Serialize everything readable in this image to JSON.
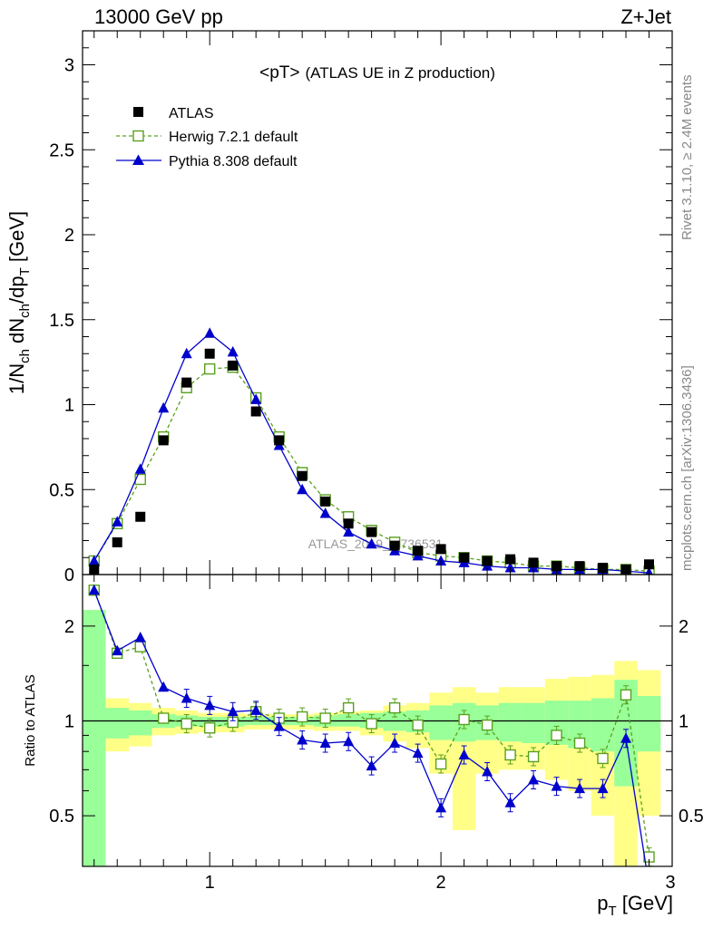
{
  "header": {
    "left": "13000 GeV pp",
    "right": "Z+Jet"
  },
  "side_labels": {
    "top": "Rivet 3.1.10, ≥ 2.4M events",
    "bottom": "mcplots.cern.ch [arXiv:1306.3436]"
  },
  "chart_data": [
    {
      "panel": "main",
      "type": "line",
      "title_main": "<pT>",
      "title_sub": "(ATLAS UE in Z production)",
      "watermark": "ATLAS_2019_I1736531",
      "xlabel": "",
      "ylabel_main": "1/N",
      "ylabel_sub1": "ch",
      "ylabel_mid": " dN",
      "ylabel_sub2": "ch",
      "ylabel_mid2": "/dp",
      "ylabel_sub3": "T",
      "ylabel_unit": " [GeV]",
      "xlim": [
        0.45,
        3.0
      ],
      "ylim": [
        0,
        3.2
      ],
      "yticks": [
        0,
        0.5,
        1,
        1.5,
        2,
        2.5,
        3
      ],
      "ytick_labels": [
        "0",
        "0.5",
        "1",
        "1.5",
        "2",
        "2.5",
        "3"
      ],
      "x": [
        0.5,
        0.6,
        0.7,
        0.8,
        0.9,
        1.0,
        1.1,
        1.2,
        1.3,
        1.4,
        1.5,
        1.6,
        1.7,
        1.8,
        1.9,
        2.0,
        2.1,
        2.2,
        2.3,
        2.4,
        2.5,
        2.6,
        2.7,
        2.8,
        2.9
      ],
      "legend_position": "top-left",
      "series": [
        {
          "name": "ATLAS",
          "color": "#000000",
          "marker": "filled-square",
          "line": "none",
          "values": [
            0.03,
            0.19,
            0.34,
            0.79,
            1.13,
            1.3,
            1.23,
            0.96,
            0.79,
            0.58,
            0.43,
            0.3,
            0.25,
            0.17,
            0.14,
            0.15,
            0.1,
            0.08,
            0.09,
            0.07,
            0.05,
            0.05,
            0.04,
            0.03,
            0.06
          ]
        },
        {
          "name": "Herwig 7.2.1 default",
          "color": "#5aa01e",
          "marker": "open-square",
          "line": "dashed",
          "values": [
            0.08,
            0.3,
            0.56,
            0.81,
            1.1,
            1.21,
            1.22,
            1.04,
            0.81,
            0.6,
            0.44,
            0.34,
            0.26,
            0.19,
            0.13,
            0.11,
            0.1,
            0.08,
            0.07,
            0.05,
            0.05,
            0.04,
            0.03,
            0.03,
            0.02
          ]
        },
        {
          "name": "Pythia 8.308 default",
          "color": "#0000cc",
          "marker": "filled-triangle",
          "line": "solid",
          "values": [
            0.08,
            0.31,
            0.62,
            0.98,
            1.3,
            1.42,
            1.31,
            1.03,
            0.76,
            0.5,
            0.36,
            0.25,
            0.18,
            0.14,
            0.11,
            0.08,
            0.07,
            0.05,
            0.04,
            0.04,
            0.03,
            0.03,
            0.03,
            0.02,
            0.01
          ]
        }
      ]
    },
    {
      "panel": "ratio",
      "type": "line",
      "ylabel": "Ratio to ATLAS",
      "xlabel_main": "p",
      "xlabel_sub": "T",
      "xlabel_unit": " [GeV]",
      "xlim": [
        0.45,
        3.0
      ],
      "ylim": [
        0.33,
        2.25
      ],
      "xticks": [
        1,
        2,
        3
      ],
      "xtick_labels": [
        "1",
        "2",
        "3"
      ],
      "yticks": [
        0.5,
        1,
        2
      ],
      "ytick_labels": [
        "0.5",
        "1",
        "2"
      ],
      "reference_line": 1,
      "band_yellow": {
        "color": "#ffff88",
        "lo": [
          0.33,
          0.8,
          0.83,
          0.9,
          0.91,
          0.92,
          0.92,
          0.94,
          0.94,
          0.94,
          0.93,
          0.93,
          0.9,
          0.86,
          0.82,
          0.68,
          0.45,
          0.68,
          0.7,
          0.7,
          0.65,
          0.6,
          0.5,
          0.33,
          0.5
        ],
        "hi": [
          2.25,
          1.18,
          1.14,
          1.1,
          1.08,
          1.06,
          1.06,
          1.05,
          1.05,
          1.05,
          1.06,
          1.07,
          1.08,
          1.12,
          1.14,
          1.23,
          1.28,
          1.23,
          1.28,
          1.28,
          1.36,
          1.38,
          1.4,
          1.55,
          1.45
        ]
      },
      "band_green": {
        "color": "#99ff99",
        "lo": [
          0.33,
          0.88,
          0.9,
          0.95,
          0.96,
          0.96,
          0.96,
          0.97,
          0.97,
          0.97,
          0.96,
          0.96,
          0.95,
          0.93,
          0.92,
          0.87,
          0.86,
          0.87,
          0.86,
          0.85,
          0.84,
          0.82,
          0.8,
          0.62,
          0.8
        ],
        "hi": [
          2.25,
          1.1,
          1.08,
          1.05,
          1.04,
          1.03,
          1.03,
          1.03,
          1.03,
          1.03,
          1.04,
          1.05,
          1.06,
          1.07,
          1.08,
          1.12,
          1.14,
          1.12,
          1.14,
          1.14,
          1.16,
          1.16,
          1.18,
          1.35,
          1.2
        ]
      },
      "x": [
        0.5,
        0.6,
        0.7,
        0.8,
        0.9,
        1.0,
        1.1,
        1.2,
        1.3,
        1.4,
        1.5,
        1.6,
        1.7,
        1.8,
        1.9,
        2.0,
        2.1,
        2.2,
        2.3,
        2.4,
        2.5,
        2.6,
        2.7,
        2.8,
        2.9
      ],
      "series": [
        {
          "name": "Herwig 7.2.1 default",
          "color": "#5aa01e",
          "marker": "open-square",
          "line": "dashed",
          "values": [
            2.6,
            1.64,
            1.72,
            1.02,
            0.98,
            0.95,
            0.99,
            1.07,
            1.02,
            1.03,
            1.02,
            1.1,
            0.98,
            1.1,
            0.97,
            0.73,
            1.01,
            0.97,
            0.78,
            0.77,
            0.9,
            0.85,
            0.76,
            1.21,
            0.37
          ]
        },
        {
          "name": "Pythia 8.308 default",
          "color": "#0000cc",
          "marker": "filled-triangle",
          "line": "solid",
          "values": [
            2.6,
            1.67,
            1.84,
            1.28,
            1.18,
            1.12,
            1.07,
            1.08,
            0.96,
            0.87,
            0.85,
            0.86,
            0.72,
            0.85,
            0.79,
            0.53,
            0.78,
            0.69,
            0.55,
            0.65,
            0.62,
            0.61,
            0.61,
            0.88,
            0.3
          ]
        }
      ]
    }
  ]
}
